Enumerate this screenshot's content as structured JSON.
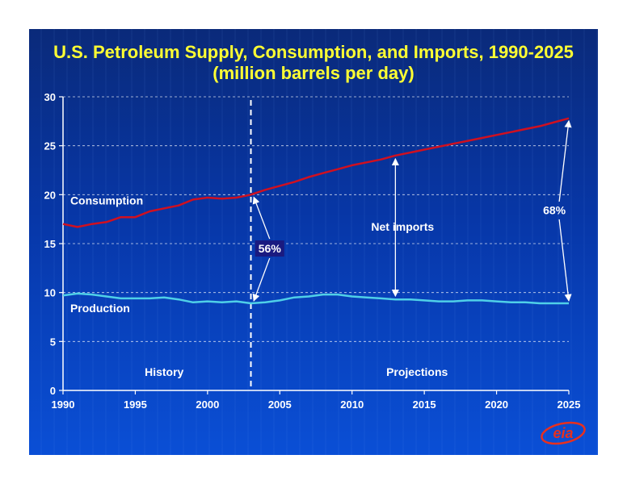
{
  "chart_data": {
    "type": "line",
    "title": "U.S. Petroleum Supply, Consumption, and Imports, 1990-2025",
    "subtitle": "(million barrels per day)",
    "xlim": [
      1990,
      2025
    ],
    "ylim": [
      0,
      30
    ],
    "x_ticks": [
      1990,
      1995,
      2000,
      2005,
      2010,
      2015,
      2020,
      2025
    ],
    "y_ticks": [
      0,
      5,
      10,
      15,
      20,
      25,
      30
    ],
    "grid": "horizontal-dashed",
    "history_end": 2003,
    "series": [
      {
        "name": "Consumption",
        "color": "#d01020",
        "x": [
          1990,
          1991,
          1992,
          1993,
          1994,
          1995,
          1996,
          1997,
          1998,
          1999,
          2000,
          2001,
          2002,
          2003,
          2004,
          2005,
          2006,
          2007,
          2008,
          2009,
          2010,
          2011,
          2012,
          2013,
          2014,
          2015,
          2016,
          2017,
          2018,
          2019,
          2020,
          2021,
          2022,
          2023,
          2024,
          2025
        ],
        "values": [
          17.0,
          16.7,
          17.0,
          17.2,
          17.7,
          17.7,
          18.3,
          18.6,
          18.9,
          19.5,
          19.7,
          19.6,
          19.7,
          20.0,
          20.5,
          20.9,
          21.3,
          21.8,
          22.2,
          22.6,
          23.0,
          23.3,
          23.6,
          24.0,
          24.3,
          24.6,
          24.9,
          25.2,
          25.5,
          25.8,
          26.1,
          26.4,
          26.7,
          27.0,
          27.4,
          27.8
        ]
      },
      {
        "name": "Production",
        "color": "#4fd0e8",
        "x": [
          1990,
          1991,
          1992,
          1993,
          1994,
          1995,
          1996,
          1997,
          1998,
          1999,
          2000,
          2001,
          2002,
          2003,
          2004,
          2005,
          2006,
          2007,
          2008,
          2009,
          2010,
          2011,
          2012,
          2013,
          2014,
          2015,
          2016,
          2017,
          2018,
          2019,
          2020,
          2021,
          2022,
          2023,
          2024,
          2025
        ],
        "values": [
          9.7,
          9.9,
          9.8,
          9.6,
          9.4,
          9.4,
          9.4,
          9.5,
          9.3,
          9.0,
          9.1,
          9.0,
          9.1,
          8.9,
          9.0,
          9.2,
          9.5,
          9.6,
          9.8,
          9.8,
          9.6,
          9.5,
          9.4,
          9.3,
          9.3,
          9.2,
          9.1,
          9.1,
          9.2,
          9.2,
          9.1,
          9.0,
          9.0,
          8.9,
          8.9,
          8.9
        ]
      }
    ],
    "annotations": {
      "consumption_label": "Consumption",
      "production_label": "Production",
      "net_imports": "Net imports",
      "pct_2003": "56%",
      "pct_2025": "68%",
      "history": "History",
      "projections": "Projections"
    },
    "colors": {
      "axis": "#ffffff",
      "grid": "#ffffff",
      "pct_2003_box": "#1a1a80"
    }
  },
  "logo": {
    "text": "eia",
    "color": "#e8301e"
  }
}
